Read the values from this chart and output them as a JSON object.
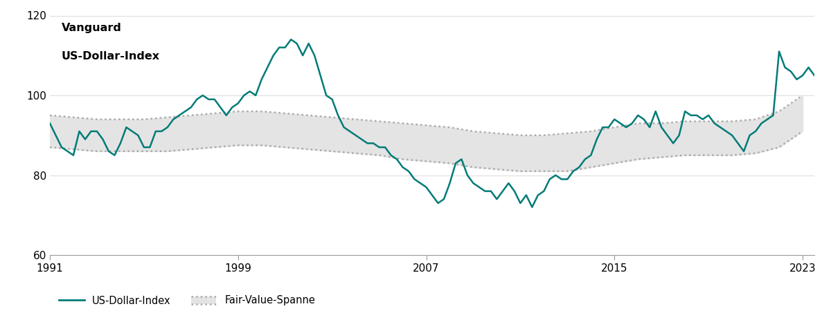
{
  "title_line1": "Vanguard",
  "title_line2": "US-Dollar-Index",
  "legend_line": "US-Dollar-Index",
  "legend_band": "Fair-Value-Spanne",
  "line_color": "#007b77",
  "band_fill_color": "#e4e4e4",
  "band_edge_color": "#aaaaaa",
  "ylim": [
    60,
    120
  ],
  "yticks": [
    60,
    80,
    100,
    120
  ],
  "xticks": [
    1991,
    1999,
    2007,
    2015,
    2023
  ],
  "fv_years": [
    1991,
    1992,
    1993,
    1994,
    1995,
    1996,
    1997,
    1998,
    1999,
    2000,
    2001,
    2002,
    2003,
    2004,
    2005,
    2006,
    2007,
    2008,
    2009,
    2010,
    2011,
    2012,
    2013,
    2014,
    2015,
    2016,
    2017,
    2018,
    2019,
    2020,
    2021,
    2022,
    2023
  ],
  "fair_value_upper": [
    95,
    94.5,
    94,
    94,
    94,
    94.5,
    95,
    95.5,
    96,
    96,
    95.5,
    95,
    94.5,
    94,
    93.5,
    93,
    92.5,
    92,
    91,
    90.5,
    90,
    90,
    90.5,
    91,
    92,
    93,
    93,
    93.5,
    93.5,
    93.5,
    94,
    96,
    100
  ],
  "fair_value_lower": [
    87,
    86.5,
    86,
    86,
    86,
    86,
    86.5,
    87,
    87.5,
    87.5,
    87,
    86.5,
    86,
    85.5,
    85,
    84,
    83.5,
    83,
    82,
    81.5,
    81,
    81,
    81,
    82,
    83,
    84,
    84.5,
    85,
    85,
    85,
    85.5,
    87,
    91
  ],
  "dollar_years": [
    1991.0,
    1991.25,
    1991.5,
    1991.75,
    1992.0,
    1992.25,
    1992.5,
    1992.75,
    1993.0,
    1993.25,
    1993.5,
    1993.75,
    1994.0,
    1994.25,
    1994.5,
    1994.75,
    1995.0,
    1995.25,
    1995.5,
    1995.75,
    1996.0,
    1996.25,
    1996.5,
    1996.75,
    1997.0,
    1997.25,
    1997.5,
    1997.75,
    1998.0,
    1998.25,
    1998.5,
    1998.75,
    1999.0,
    1999.25,
    1999.5,
    1999.75,
    2000.0,
    2000.25,
    2000.5,
    2000.75,
    2001.0,
    2001.25,
    2001.5,
    2001.75,
    2002.0,
    2002.25,
    2002.5,
    2002.75,
    2003.0,
    2003.25,
    2003.5,
    2003.75,
    2004.0,
    2004.25,
    2004.5,
    2004.75,
    2005.0,
    2005.25,
    2005.5,
    2005.75,
    2006.0,
    2006.25,
    2006.5,
    2006.75,
    2007.0,
    2007.25,
    2007.5,
    2007.75,
    2008.0,
    2008.25,
    2008.5,
    2008.75,
    2009.0,
    2009.25,
    2009.5,
    2009.75,
    2010.0,
    2010.25,
    2010.5,
    2010.75,
    2011.0,
    2011.25,
    2011.5,
    2011.75,
    2012.0,
    2012.25,
    2012.5,
    2012.75,
    2013.0,
    2013.25,
    2013.5,
    2013.75,
    2014.0,
    2014.25,
    2014.5,
    2014.75,
    2015.0,
    2015.25,
    2015.5,
    2015.75,
    2016.0,
    2016.25,
    2016.5,
    2016.75,
    2017.0,
    2017.25,
    2017.5,
    2017.75,
    2018.0,
    2018.25,
    2018.5,
    2018.75,
    2019.0,
    2019.25,
    2019.5,
    2019.75,
    2020.0,
    2020.25,
    2020.5,
    2020.75,
    2021.0,
    2021.25,
    2021.5,
    2021.75,
    2022.0,
    2022.25,
    2022.5,
    2022.75,
    2023.0,
    2023.25,
    2023.5
  ],
  "dollar_index": [
    93,
    90,
    87,
    86,
    85,
    91,
    89,
    91,
    91,
    89,
    86,
    85,
    88,
    92,
    91,
    90,
    87,
    87,
    91,
    91,
    92,
    94,
    95,
    96,
    97,
    99,
    100,
    99,
    99,
    97,
    95,
    97,
    98,
    100,
    101,
    100,
    104,
    107,
    110,
    112,
    112,
    114,
    113,
    110,
    113,
    110,
    105,
    100,
    99,
    95,
    92,
    91,
    90,
    89,
    88,
    88,
    87,
    87,
    85,
    84,
    82,
    81,
    79,
    78,
    77,
    75,
    73,
    74,
    78,
    83,
    84,
    80,
    78,
    77,
    76,
    76,
    74,
    76,
    78,
    76,
    73,
    75,
    72,
    75,
    76,
    79,
    80,
    79,
    79,
    81,
    82,
    84,
    85,
    89,
    92,
    92,
    94,
    93,
    92,
    93,
    95,
    94,
    92,
    96,
    92,
    90,
    88,
    90,
    96,
    95,
    95,
    94,
    95,
    93,
    92,
    91,
    90,
    88,
    86,
    90,
    91,
    93,
    94,
    95,
    111,
    107,
    106,
    104,
    105,
    107,
    105
  ]
}
